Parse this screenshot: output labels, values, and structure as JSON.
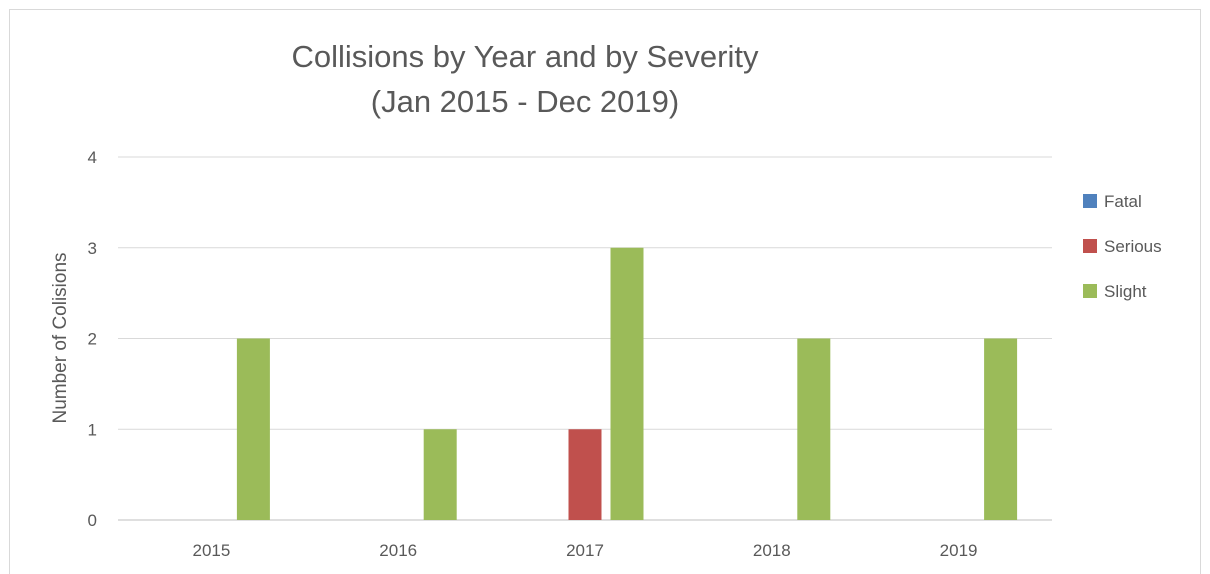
{
  "chart_data": {
    "type": "bar",
    "title": "Collisions by Year and by Severity",
    "subtitle": "(Jan 2015 - Dec 2019)",
    "xlabel": "",
    "ylabel": "Number of Colisions",
    "categories": [
      "2015",
      "2016",
      "2017",
      "2018",
      "2019"
    ],
    "series": [
      {
        "name": "Fatal",
        "color": "#4f81bd",
        "values": [
          0,
          0,
          0,
          0,
          0
        ]
      },
      {
        "name": "Serious",
        "color": "#c0504d",
        "values": [
          0,
          0,
          1,
          0,
          0
        ]
      },
      {
        "name": "Slight",
        "color": "#9bbb59",
        "values": [
          2,
          1,
          3,
          2,
          2
        ]
      }
    ],
    "ylim": [
      0,
      4
    ],
    "yticks": [
      "0",
      "1",
      "2",
      "3",
      "4"
    ],
    "grid": true,
    "legend_position": "right"
  }
}
